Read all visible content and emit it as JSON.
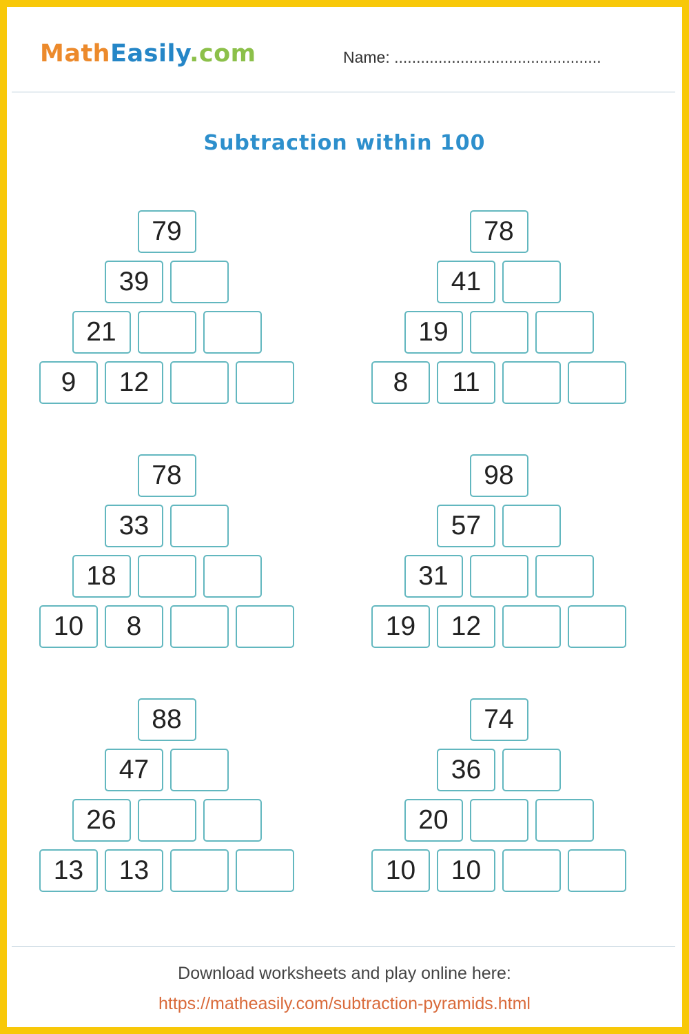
{
  "header": {
    "logo": {
      "part1": "Math",
      "part2": "Easily",
      "part3": ".com"
    },
    "name_label": "Name:",
    "name_dots": "..............................................."
  },
  "title": "Subtraction within 100",
  "pyramids": [
    {
      "rows": [
        [
          "79"
        ],
        [
          "39",
          ""
        ],
        [
          "21",
          "",
          ""
        ],
        [
          "9",
          "12",
          "",
          ""
        ]
      ]
    },
    {
      "rows": [
        [
          "78"
        ],
        [
          "41",
          ""
        ],
        [
          "19",
          "",
          ""
        ],
        [
          "8",
          "11",
          "",
          ""
        ]
      ]
    },
    {
      "rows": [
        [
          "78"
        ],
        [
          "33",
          ""
        ],
        [
          "18",
          "",
          ""
        ],
        [
          "10",
          "8",
          "",
          ""
        ]
      ]
    },
    {
      "rows": [
        [
          "98"
        ],
        [
          "57",
          ""
        ],
        [
          "31",
          "",
          ""
        ],
        [
          "19",
          "12",
          "",
          ""
        ]
      ]
    },
    {
      "rows": [
        [
          "88"
        ],
        [
          "47",
          ""
        ],
        [
          "26",
          "",
          ""
        ],
        [
          "13",
          "13",
          "",
          ""
        ]
      ]
    },
    {
      "rows": [
        [
          "74"
        ],
        [
          "36",
          ""
        ],
        [
          "20",
          "",
          ""
        ],
        [
          "10",
          "10",
          "",
          ""
        ]
      ]
    }
  ],
  "footer": {
    "text": "Download worksheets and play online here:",
    "link": "https://matheasily.com/subtraction-pyramids.html"
  },
  "colors": {
    "frame": "#f8c808",
    "box_border": "#62b7bf",
    "title": "#2d8fcc",
    "link": "#d96a3a"
  }
}
